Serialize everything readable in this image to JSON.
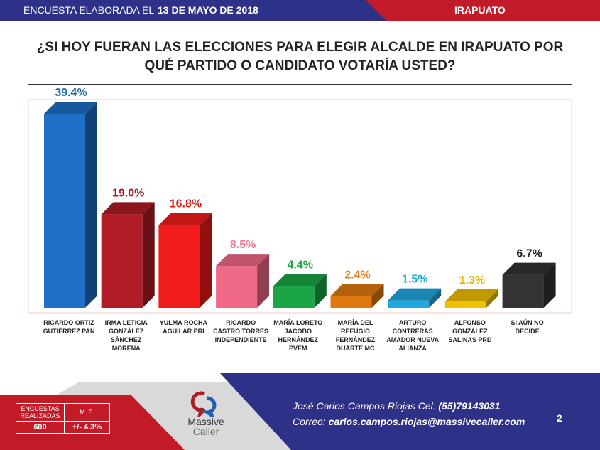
{
  "header": {
    "survey_label": "ENCUESTA ELABORADA EL",
    "date": "13 DE MAYO DE 2018",
    "city": "IRAPUATO"
  },
  "chart_data": {
    "type": "bar",
    "title": "¿SI HOY FUERAN LAS ELECCIONES PARA ELEGIR ALCALDE EN IRAPUATO POR QUÉ PARTIDO O CANDIDATO VOTARÍA USTED?",
    "categories": [
      "RICARDO ORTIZ GUTIÉRREZ PAN",
      "IRMA LETICIA GONZÁLEZ SÁNCHEZ MORENA",
      "YULMA ROCHA AGUILAR PRI",
      "RICARDO CASTRO TORRES INDEPENDIENTE",
      "MARÍA LORETO JACOBO HERNÁNDEZ PVEM",
      "MARÍA DEL REFUGIO FERNÁNDEZ DUARTE MC",
      "ARTURO CONTRERAS AMADOR NUEVA ALIANZA",
      "ALFONSO GONZÁLEZ SALINAS PRD",
      "SI AÚN NO DECIDE"
    ],
    "values": [
      39.4,
      19.0,
      16.8,
      8.5,
      4.4,
      2.4,
      1.5,
      1.3,
      6.7
    ],
    "labels": [
      "39.4%",
      "19.0%",
      "16.8%",
      "8.5%",
      "4.4%",
      "2.4%",
      "1.5%",
      "1.3%",
      "6.7%"
    ],
    "colors": [
      "#1f6fc4",
      "#b01c26",
      "#f01c1c",
      "#f06a88",
      "#1ca544",
      "#e07a10",
      "#22a8e0",
      "#f0c000",
      "#333333"
    ],
    "label_colors": [
      "#1f6fb5",
      "#a31c24",
      "#d8201a",
      "#f07890",
      "#1ea345",
      "#e08020",
      "#22aadd",
      "#e0b800",
      "#222222"
    ],
    "ylim": [
      0,
      40
    ],
    "grid": false
  },
  "footer": {
    "surveys_label": "ENCUESTAS REALIZADAS",
    "me_label": "M. E.",
    "surveys": "600",
    "me": "+/- 4.3%",
    "logo_line1": "Massive",
    "logo_line2": "Caller",
    "contact_name": "José Carlos Campos Riojas Cel: ",
    "phone": "(55)79143031",
    "email_label": "Correo: ",
    "email": "carlos.campos.riojas@massivecaller.com",
    "page": "2"
  }
}
